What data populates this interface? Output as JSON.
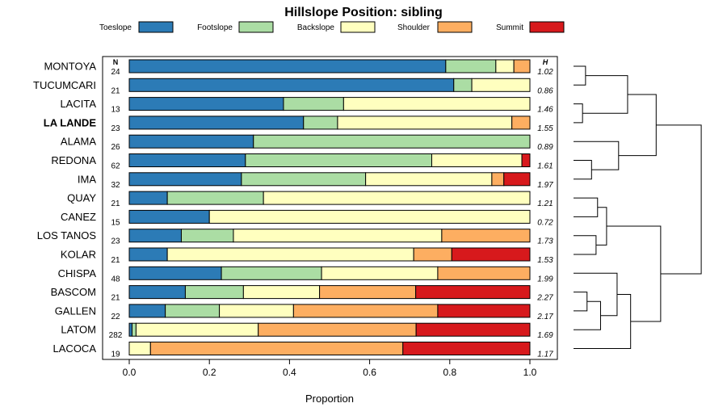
{
  "chart_data": {
    "type": "bar",
    "orientation": "horizontal",
    "stacked": true,
    "title": "Hillslope Position: sibling",
    "xlabel": "Proportion",
    "ylabel": "",
    "xlim": [
      0,
      1
    ],
    "x_ticks": [
      "0.0",
      "0.2",
      "0.4",
      "0.6",
      "0.8",
      "1.0"
    ],
    "n_header": "N",
    "h_header": "H",
    "legend_position": "top",
    "categories": [
      "MONTOYA",
      "TUCUMCARI",
      "LACITA",
      "LA LANDE",
      "ALAMA",
      "REDONA",
      "IMA",
      "QUAY",
      "CANEZ",
      "LOS TANOS",
      "KOLAR",
      "CHISPA",
      "BASCOM",
      "GALLEN",
      "LATOM",
      "LACOCA"
    ],
    "highlight_category": "LA LANDE",
    "n": [
      "24",
      "21",
      "13",
      "23",
      "26",
      "62",
      "32",
      "21",
      "15",
      "23",
      "21",
      "48",
      "21",
      "22",
      "282",
      "19"
    ],
    "h": [
      "1.02",
      "0.86",
      "1.46",
      "1.55",
      "0.89",
      "1.61",
      "1.97",
      "1.21",
      "0.72",
      "1.73",
      "1.53",
      "1.99",
      "2.27",
      "2.17",
      "1.69",
      "1.17"
    ],
    "series": [
      {
        "name": "Toeslope",
        "color": "#2c7bb6",
        "values": [
          0.79,
          0.81,
          0.385,
          0.435,
          0.31,
          0.29,
          0.28,
          0.095,
          0.2,
          0.13,
          0.095,
          0.23,
          0.14,
          0.09,
          0.007,
          0.0
        ]
      },
      {
        "name": "Footslope",
        "color": "#abdda4",
        "values": [
          0.125,
          0.045,
          0.15,
          0.085,
          0.69,
          0.465,
          0.31,
          0.24,
          0.0,
          0.13,
          0.0,
          0.25,
          0.145,
          0.135,
          0.01,
          0.0
        ]
      },
      {
        "name": "Backslope",
        "color": "#ffffbf",
        "values": [
          0.045,
          0.145,
          0.465,
          0.435,
          0.0,
          0.225,
          0.315,
          0.665,
          0.8,
          0.52,
          0.615,
          0.29,
          0.19,
          0.185,
          0.305,
          0.053
        ]
      },
      {
        "name": "Shoulder",
        "color": "#fdae61",
        "values": [
          0.04,
          0.0,
          0.0,
          0.045,
          0.0,
          0.0,
          0.03,
          0.0,
          0.0,
          0.22,
          0.095,
          0.23,
          0.24,
          0.36,
          0.394,
          0.63
        ]
      },
      {
        "name": "Summit",
        "color": "#d7191c",
        "values": [
          0.0,
          0.0,
          0.0,
          0.0,
          0.0,
          0.02,
          0.065,
          0.0,
          0.0,
          0.0,
          0.195,
          0.0,
          0.285,
          0.23,
          0.284,
          0.317
        ]
      }
    ],
    "dendrogram": {
      "merges": [
        {
          "left": "MONTOYA",
          "right": "TUCUMCARI",
          "height": 0.08
        },
        {
          "left": "LACITA",
          "right": "LA LANDE",
          "height": 0.06
        },
        {
          "left": "m1",
          "right": "m2",
          "height": 0.36
        },
        {
          "left": "REDONA",
          "right": "IMA",
          "height": 0.12
        },
        {
          "left": "ALAMA",
          "right": "m4",
          "height": 0.3
        },
        {
          "left": "m3",
          "right": "m5",
          "height": 0.55
        },
        {
          "left": "QUAY",
          "right": "CANEZ",
          "height": 0.16
        },
        {
          "left": "LOS TANOS",
          "right": "KOLAR",
          "height": 0.15
        },
        {
          "left": "m7",
          "right": "m8",
          "height": 0.22
        },
        {
          "left": "BASCOM",
          "right": "GALLEN",
          "height": 0.09
        },
        {
          "left": "LATOM",
          "right": "m10",
          "height": 0.18
        },
        {
          "left": "CHISPA",
          "right": "m11",
          "height": 0.29
        },
        {
          "left": "m12",
          "right": "LACOCA",
          "height": 0.38
        },
        {
          "left": "m9",
          "right": "m13",
          "height": 0.58
        },
        {
          "left": "m6",
          "right": "m14",
          "height": 0.85
        }
      ]
    }
  }
}
